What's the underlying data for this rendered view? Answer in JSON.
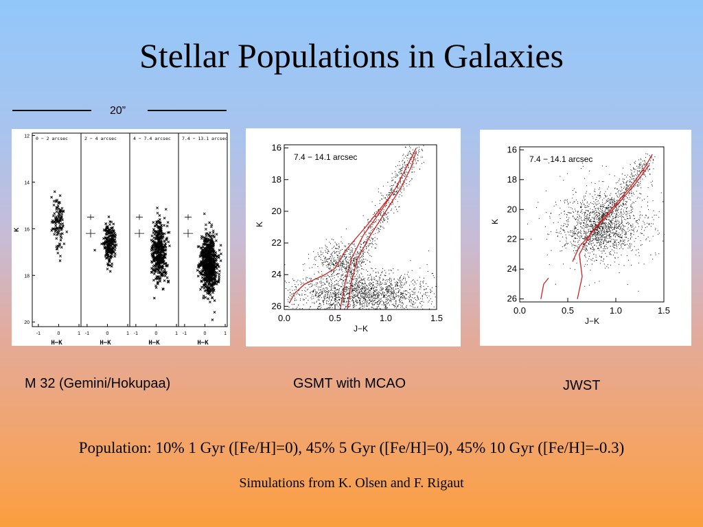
{
  "slide": {
    "title": "Stellar Populations in Galaxies",
    "scale_label": "20”",
    "captions": {
      "m32": "M 32 (Gemini/Hokupaa)",
      "gsmt": "GSMT with MCAO",
      "jwst": "JWST"
    },
    "population": "Population: 10% 1 Gyr ([Fe/H]=0), 45% 5 Gyr ([Fe/H]=0), 45% 10 Gyr ([Fe/H]=-0.3)",
    "credit": "Simulations from K. Olsen and F. Rigaut"
  },
  "colors": {
    "isochrone": "#d0201e",
    "points": "#000000"
  },
  "chart_data": [
    {
      "type": "scatter",
      "id": "m32",
      "ylabel": "K",
      "xlabel": "H−K",
      "ylim": [
        20.2,
        11.9
      ],
      "xlim": [
        -1.3,
        1.1
      ],
      "y_ticks": [
        "12",
        "14",
        "16",
        "18",
        "20"
      ],
      "x_ticks": [
        "-1",
        "0",
        "1"
      ],
      "panels": [
        {
          "label": "0 − 2 arcsec",
          "n": 110,
          "center_x": 0.0,
          "center_y": 15.8,
          "spread_x": 0.15,
          "spread_y": 0.8
        },
        {
          "label": "2 − 4 arcsec",
          "n": 220,
          "center_x": 0.1,
          "center_y": 16.6,
          "spread_x": 0.15,
          "spread_y": 0.6
        },
        {
          "label": "4 − 7.4 arcsec",
          "n": 420,
          "center_x": 0.15,
          "center_y": 17.0,
          "spread_x": 0.18,
          "spread_y": 0.9
        },
        {
          "label": "7.4 − 13.1 arcsec",
          "n": 720,
          "center_x": 0.2,
          "center_y": 17.5,
          "spread_x": 0.2,
          "spread_y": 0.9
        }
      ]
    },
    {
      "type": "scatter",
      "id": "gsmt",
      "annotation": "7.4 − 14.1 arcsec",
      "ylabel": "K",
      "xlabel": "J−K",
      "xlim": [
        0.0,
        1.5
      ],
      "ylim": [
        26.2,
        15.8
      ],
      "x_ticks": [
        "0.0",
        "0.5",
        "1.0",
        "1.5"
      ],
      "y_ticks": [
        "16",
        "18",
        "20",
        "22",
        "24",
        "26"
      ],
      "isochrones": [
        {
          "name": "",
          "points": [
            [
              0.62,
              26.2
            ],
            [
              0.66,
              24.5
            ],
            [
              0.72,
              23.0
            ],
            [
              0.85,
              21.5
            ],
            [
              1.0,
              20.0
            ],
            [
              1.15,
              18.5
            ],
            [
              1.25,
              17.2
            ],
            [
              1.3,
              16.2
            ]
          ]
        },
        {
          "name": "",
          "points": [
            [
              0.55,
              26.2
            ],
            [
              0.6,
              24.5
            ],
            [
              0.66,
              23.0
            ],
            [
              0.78,
              21.5
            ],
            [
              0.95,
              20.0
            ],
            [
              1.1,
              18.5
            ],
            [
              1.22,
              17.0
            ],
            [
              1.3,
              16.0
            ]
          ]
        },
        {
          "name": "",
          "points": [
            [
              0.05,
              25.8
            ],
            [
              0.1,
              25.2
            ],
            [
              0.2,
              24.6
            ],
            [
              0.4,
              24.0
            ],
            [
              0.5,
              23.6
            ],
            [
              0.6,
              22.5
            ],
            [
              0.8,
              21.0
            ],
            [
              0.95,
              19.8
            ],
            [
              1.05,
              19.0
            ]
          ]
        }
      ]
    },
    {
      "type": "scatter",
      "id": "jwst",
      "annotation": "7.4 − 14.1 arcsec",
      "ylabel": "K",
      "xlabel": "J−K",
      "xlim": [
        0.0,
        1.5
      ],
      "ylim": [
        26.2,
        15.8
      ],
      "x_ticks": [
        "0.0",
        "0.5",
        "1.0",
        "1.5"
      ],
      "y_ticks": [
        "16",
        "18",
        "20",
        "22",
        "24",
        "26"
      ],
      "isochrones": [
        {
          "name": "",
          "points": [
            [
              0.22,
              26.0
            ],
            [
              0.25,
              25.0
            ],
            [
              0.3,
              24.6
            ]
          ]
        },
        {
          "name": "",
          "points": [
            [
              0.6,
              26.0
            ],
            [
              0.65,
              24.5
            ],
            [
              0.62,
              23.0
            ],
            [
              0.75,
              21.5
            ],
            [
              0.95,
              20.0
            ],
            [
              1.15,
              18.5
            ],
            [
              1.3,
              17.2
            ],
            [
              1.38,
              16.3
            ]
          ]
        },
        {
          "name": "",
          "points": [
            [
              0.55,
              23.5
            ],
            [
              0.62,
              22.5
            ],
            [
              0.8,
              21.2
            ],
            [
              1.0,
              19.8
            ],
            [
              1.2,
              18.3
            ],
            [
              1.35,
              17.0
            ]
          ]
        }
      ]
    }
  ]
}
